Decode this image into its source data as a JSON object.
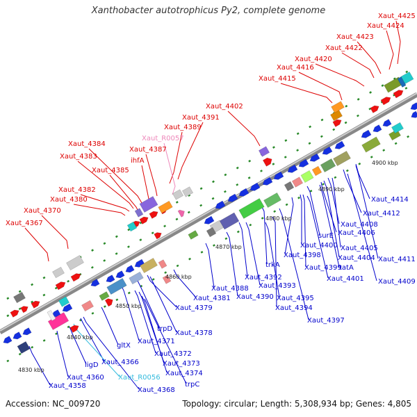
{
  "title": "Xanthobacter autotrophicus Py2, complete genome",
  "footer": {
    "accession": "Accession: NC_009720",
    "summary": "Topology: circular; Length: 5,308,934 bp; Genes: 4,805"
  },
  "ticks": [
    "4830 kbp",
    "4840 kbp",
    "4850 kbp",
    "4860 kbp",
    "4870 kbp",
    "4880 kbp",
    "4890 kbp",
    "4900 kbp"
  ],
  "top_labels": [
    {
      "text": "Xaut_4425",
      "color": "#dd0000"
    },
    {
      "text": "Xaut_4424",
      "color": "#dd0000"
    },
    {
      "text": "Xaut_4423",
      "color": "#dd0000"
    },
    {
      "text": "Xaut_4422",
      "color": "#dd0000"
    },
    {
      "text": "Xaut_4420",
      "color": "#dd0000"
    },
    {
      "text": "Xaut_4416",
      "color": "#dd0000"
    },
    {
      "text": "Xaut_4415",
      "color": "#dd0000"
    },
    {
      "text": "Xaut_4402",
      "color": "#dd0000"
    },
    {
      "text": "Xaut_4391",
      "color": "#dd0000"
    },
    {
      "text": "Xaut_4389",
      "color": "#dd0000"
    },
    {
      "text": "Xaut_R0057",
      "color": "#ee88bb"
    },
    {
      "text": "Xaut_4387",
      "color": "#dd0000"
    },
    {
      "text": "Xaut_4384",
      "color": "#dd0000"
    },
    {
      "text": "ihfA",
      "color": "#dd0000"
    },
    {
      "text": "Xaut_4383",
      "color": "#dd0000"
    },
    {
      "text": "Xaut_4385",
      "color": "#dd0000"
    },
    {
      "text": "Xaut_4382",
      "color": "#dd0000"
    },
    {
      "text": "Xaut_4380",
      "color": "#dd0000"
    },
    {
      "text": "Xaut_4370",
      "color": "#dd0000"
    },
    {
      "text": "Xaut_4367",
      "color": "#dd0000"
    }
  ],
  "bottom_labels": [
    {
      "text": "Xaut_4414",
      "color": "#0000cc"
    },
    {
      "text": "Xaut_4412",
      "color": "#0000cc"
    },
    {
      "text": "Xaut_4408",
      "color": "#0000cc"
    },
    {
      "text": "Xaut_4406",
      "color": "#0000cc"
    },
    {
      "text": "surE",
      "color": "#0000cc"
    },
    {
      "text": "Xaut_4400",
      "color": "#0000cc"
    },
    {
      "text": "Xaut_4405",
      "color": "#0000cc"
    },
    {
      "text": "Xaut_4411",
      "color": "#0000cc"
    },
    {
      "text": "Xaut_4404",
      "color": "#0000cc"
    },
    {
      "text": "Xaut_4398",
      "color": "#0000cc"
    },
    {
      "text": "tatA",
      "color": "#0000cc"
    },
    {
      "text": "trkA",
      "color": "#0000cc"
    },
    {
      "text": "Xaut_4399",
      "color": "#0000cc"
    },
    {
      "text": "Xaut_4409",
      "color": "#0000cc"
    },
    {
      "text": "Xaut_4392",
      "color": "#0000cc"
    },
    {
      "text": "Xaut_4401",
      "color": "#0000cc"
    },
    {
      "text": "Xaut_4388",
      "color": "#0000cc"
    },
    {
      "text": "Xaut_4393",
      "color": "#0000cc"
    },
    {
      "text": "Xaut_4381",
      "color": "#0000cc"
    },
    {
      "text": "Xaut_4390",
      "color": "#0000cc"
    },
    {
      "text": "Xaut_4395",
      "color": "#0000cc"
    },
    {
      "text": "Xaut_4379",
      "color": "#0000cc"
    },
    {
      "text": "Xaut_4394",
      "color": "#0000cc"
    },
    {
      "text": "Xaut_4397",
      "color": "#0000cc"
    },
    {
      "text": "trpD",
      "color": "#0000cc"
    },
    {
      "text": "Xaut_4378",
      "color": "#0000cc"
    },
    {
      "text": "gltX",
      "color": "#0000cc"
    },
    {
      "text": "Xaut_4371",
      "color": "#0000cc"
    },
    {
      "text": "Xaut_4372",
      "color": "#0000cc"
    },
    {
      "text": "Xaut_4366",
      "color": "#0000cc"
    },
    {
      "text": "Xaut_4373",
      "color": "#0000cc"
    },
    {
      "text": "ligD",
      "color": "#0000cc"
    },
    {
      "text": "Xaut_4374",
      "color": "#0000cc"
    },
    {
      "text": "Xaut_4360",
      "color": "#0000cc"
    },
    {
      "text": "Xaut_R0056",
      "color": "#33bbdd"
    },
    {
      "text": "trpC",
      "color": "#0000cc"
    },
    {
      "text": "Xaut_4358",
      "color": "#0000cc"
    },
    {
      "text": "Xaut_4368",
      "color": "#0000cc"
    }
  ]
}
